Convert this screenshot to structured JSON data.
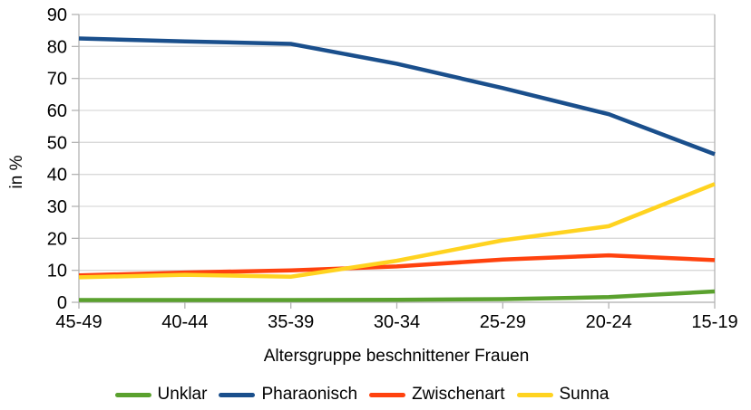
{
  "chart_data": {
    "type": "line",
    "title": "",
    "xlabel": "Altersgruppe beschnittener Frauen",
    "ylabel": "in %",
    "ylim": [
      0,
      90
    ],
    "ytick_step": 10,
    "yticks": [
      0,
      10,
      20,
      30,
      40,
      50,
      60,
      70,
      80,
      90
    ],
    "grid": true,
    "legend_position": "bottom",
    "categories": [
      "45-49",
      "40-44",
      "35-39",
      "30-34",
      "25-29",
      "20-24",
      "15-19"
    ],
    "series": [
      {
        "name": "Unklar",
        "color": "#5aa12e",
        "values": [
          0.7,
          0.7,
          0.7,
          0.8,
          1.0,
          1.6,
          3.4
        ]
      },
      {
        "name": "Pharaonisch",
        "color": "#1a4f8c",
        "values": [
          82.5,
          81.6,
          80.8,
          74.6,
          67.0,
          58.8,
          46.3
        ]
      },
      {
        "name": "Zwischenart",
        "color": "#ff420e",
        "values": [
          8.4,
          9.3,
          10.0,
          11.2,
          13.4,
          14.7,
          13.2
        ]
      },
      {
        "name": "Sunna",
        "color": "#ffd320",
        "values": [
          7.8,
          8.6,
          8.0,
          13.0,
          19.4,
          23.8,
          37.0
        ]
      }
    ],
    "colors": {
      "gridline": "#d9d9d9",
      "axis": "#b3b3b3",
      "text": "#000000",
      "background": "#ffffff"
    }
  }
}
